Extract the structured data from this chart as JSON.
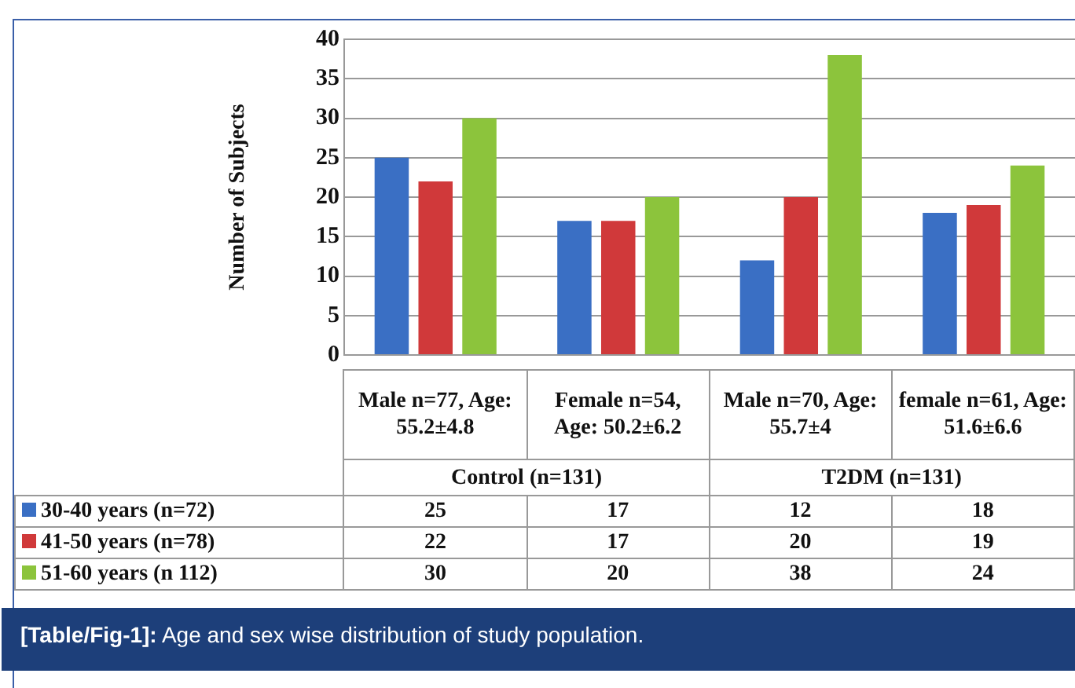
{
  "chart_data": {
    "type": "bar",
    "ylabel": "Number of Subjects",
    "categories": [
      "Male n=77, Age: 55.2±4.8",
      "Female n=54, Age: 50.2±6.2",
      "Male n=70, Age: 55.7±4",
      "female n=61, Age: 51.6±6.6"
    ],
    "series": [
      {
        "name": "30-40 years (n=72)",
        "color": "#3a6fc4",
        "values": [
          25,
          17,
          12,
          18
        ]
      },
      {
        "name": "41-50 years (n=78)",
        "color": "#d0393a",
        "values": [
          22,
          17,
          20,
          19
        ]
      },
      {
        "name": "51-60 years (n 112)",
        "color": "#8cc43c",
        "values": [
          30,
          20,
          38,
          24
        ]
      }
    ],
    "ylim": [
      0,
      40
    ],
    "yticks": [
      0,
      5,
      10,
      15,
      20,
      25,
      30,
      35,
      40
    ],
    "grid": "y",
    "legend": "bottom left",
    "data_labels": true,
    "annotations": [
      "Control (n=131)",
      "T2DM (n=131)",
      "[Table/Fig-1]: Age and sex wise distribution of study population."
    ]
  }
}
